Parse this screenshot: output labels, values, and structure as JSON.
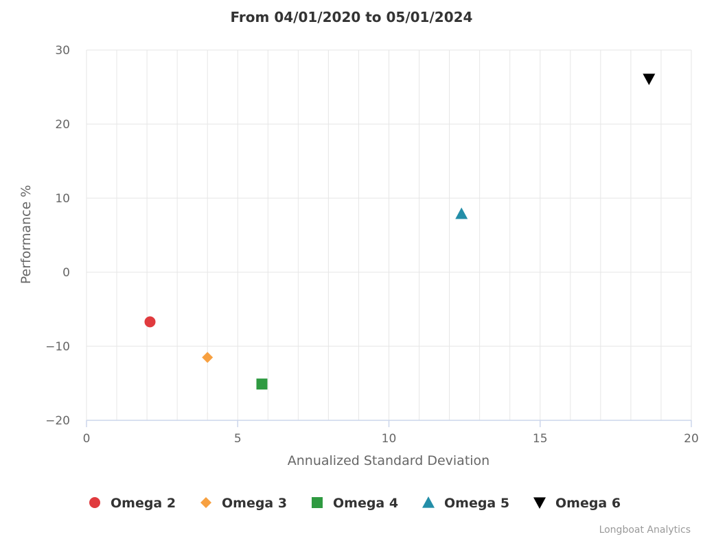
{
  "chart_data": {
    "type": "scatter",
    "title": "From 04/01/2020 to 05/01/2024",
    "xlabel": "Annualized Standard Deviation",
    "ylabel": "Performance %",
    "xlim": [
      0,
      20
    ],
    "ylim": [
      -20,
      30
    ],
    "x_ticks": [
      0,
      5,
      10,
      15,
      20
    ],
    "y_ticks": [
      30,
      20,
      10,
      0,
      -10,
      -20
    ],
    "x_tick_labels": [
      "0",
      "5",
      "10",
      "15",
      "20"
    ],
    "y_tick_labels": [
      "30",
      "20",
      "10",
      "0",
      "−10",
      "−20"
    ],
    "grid": true,
    "legend_position": "bottom-center",
    "series": [
      {
        "name": "Omega 2",
        "marker": "circle",
        "color": "#e03a3e",
        "x": 2.1,
        "y": -6.7
      },
      {
        "name": "Omega 3",
        "marker": "diamond",
        "color": "#f7a040",
        "x": 4.0,
        "y": -11.5
      },
      {
        "name": "Omega 4",
        "marker": "square",
        "color": "#2f9a41",
        "x": 5.8,
        "y": -15.1
      },
      {
        "name": "Omega 5",
        "marker": "triangle-up",
        "color": "#238ea8",
        "x": 12.4,
        "y": 7.9
      },
      {
        "name": "Omega 6",
        "marker": "triangle-down",
        "color": "#000000",
        "x": 18.6,
        "y": 26.1
      }
    ]
  },
  "credits": "Longboat Analytics"
}
